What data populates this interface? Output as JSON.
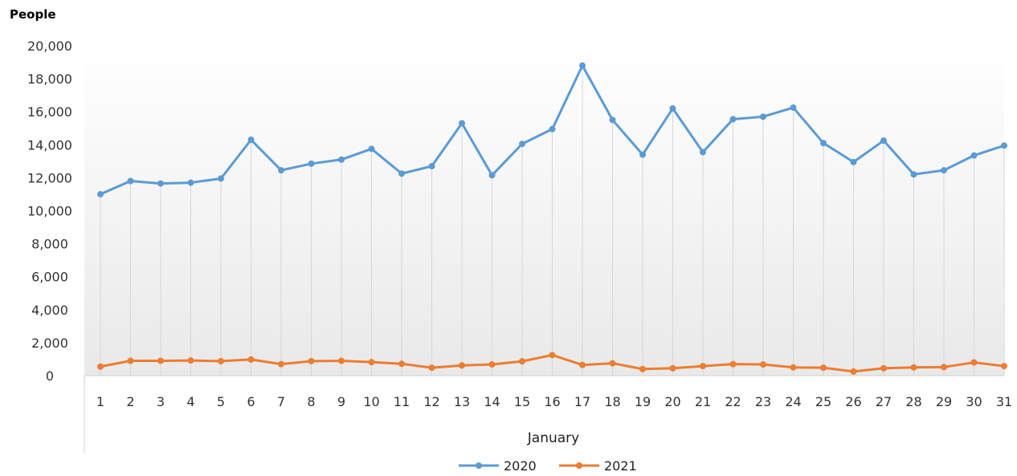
{
  "chart_data": {
    "type": "line",
    "ylabel": "People",
    "xlabel": "January",
    "ylim": [
      0,
      20000
    ],
    "yticks": [
      "0",
      "2,000",
      "4,000",
      "6,000",
      "8,000",
      "10,000",
      "12,000",
      "14,000",
      "16,000",
      "18,000",
      "20,000"
    ],
    "categories": [
      "1",
      "2",
      "3",
      "4",
      "5",
      "6",
      "7",
      "8",
      "9",
      "10",
      "11",
      "12",
      "13",
      "14",
      "15",
      "16",
      "17",
      "18",
      "19",
      "20",
      "21",
      "22",
      "23",
      "24",
      "25",
      "26",
      "27",
      "28",
      "29",
      "30",
      "31"
    ],
    "series": [
      {
        "name": "2020",
        "color": "#5b9bd5",
        "values": [
          11000,
          11800,
          11650,
          11700,
          11950,
          14300,
          12450,
          12850,
          13100,
          13750,
          12250,
          12700,
          15300,
          12150,
          14050,
          14950,
          18800,
          15500,
          13400,
          16200,
          13550,
          15550,
          15700,
          16250,
          14100,
          12950,
          14250,
          12200,
          12450,
          13350,
          13950
        ]
      },
      {
        "name": "2021",
        "color": "#ed7d31",
        "values": [
          550,
          900,
          900,
          920,
          880,
          980,
          700,
          880,
          900,
          820,
          720,
          480,
          620,
          680,
          870,
          1250,
          650,
          750,
          400,
          450,
          580,
          700,
          680,
          500,
          480,
          250,
          450,
          500,
          520,
          800,
          580
        ]
      }
    ],
    "grid": "vertical-drop-lines",
    "legend": "bottom-center"
  }
}
